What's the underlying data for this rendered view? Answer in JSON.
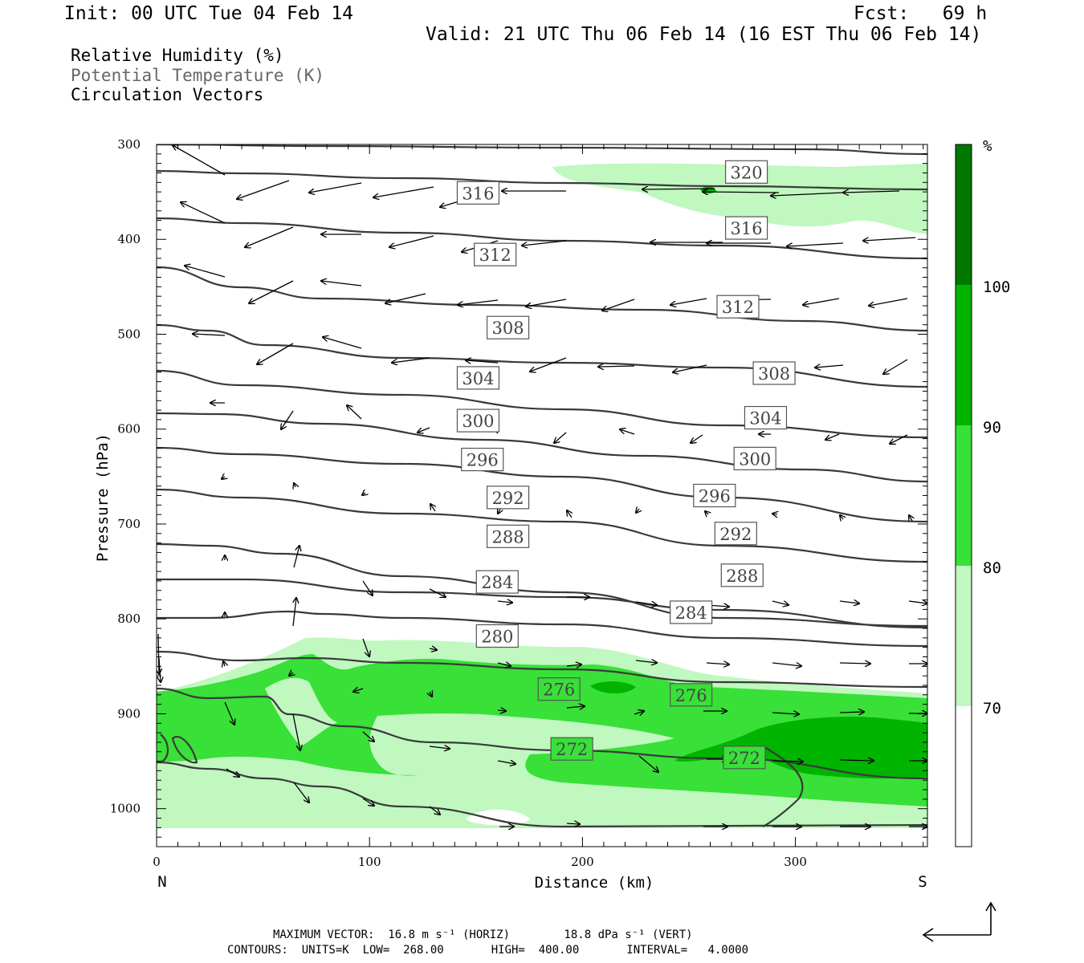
{
  "header": {
    "init": "Init: 00 UTC Tue 04 Feb 14",
    "fcst": "Fcst:   69 h",
    "valid": "Valid: 21 UTC Thu 06 Feb 14 (16 EST Thu 06 Feb 14)"
  },
  "legend": {
    "line1": "Relative Humidity (%)",
    "line2": "Potential Temperature (K)",
    "line3": "Circulation Vectors"
  },
  "footer": {
    "max_vector": "MAXIMUM VECTOR:  16.8 m s⁻¹ (HORIZ)        18.8 dPa s⁻¹ (VERT)",
    "contours": "CONTOURS:  UNITS=K  LOW=  268.00       HIGH=  400.00       INTERVAL=   4.0000"
  },
  "colors": {
    "rh70": "#c0f8c0",
    "rh80": "#38e038",
    "rh90": "#00b400",
    "rh100": "#007800",
    "theta_line": "#3a3a3a"
  },
  "chart_data": {
    "type": "cross-section",
    "xlabel": "Distance (km)",
    "ylabel": "Pressure (hPa)",
    "xlim": [
      0,
      362
    ],
    "ylim": [
      1040,
      300
    ],
    "xticks": [
      "0",
      "100",
      "200",
      "300"
    ],
    "yticks": [
      "300",
      "400",
      "500",
      "600",
      "700",
      "800",
      "900",
      "1000"
    ],
    "x_end_labels": {
      "left": "N",
      "right": "S"
    },
    "colorbar": {
      "unit": "%",
      "levels": [
        "70",
        "80",
        "90",
        "100"
      ]
    },
    "theta_labels": [
      {
        "value": "320",
        "x": 277,
        "p": 329
      },
      {
        "value": "316",
        "x": 151,
        "p": 351
      },
      {
        "value": "316",
        "x": 277,
        "p": 388
      },
      {
        "value": "312",
        "x": 159,
        "p": 416
      },
      {
        "value": "312",
        "x": 273,
        "p": 471
      },
      {
        "value": "308",
        "x": 165,
        "p": 493
      },
      {
        "value": "308",
        "x": 290,
        "p": 541
      },
      {
        "value": "304",
        "x": 151,
        "p": 546
      },
      {
        "value": "304",
        "x": 286,
        "p": 588
      },
      {
        "value": "300",
        "x": 151,
        "p": 591
      },
      {
        "value": "300",
        "x": 281,
        "p": 631
      },
      {
        "value": "296",
        "x": 153,
        "p": 632
      },
      {
        "value": "296",
        "x": 262,
        "p": 670
      },
      {
        "value": "292",
        "x": 165,
        "p": 672
      },
      {
        "value": "292",
        "x": 272,
        "p": 710
      },
      {
        "value": "288",
        "x": 165,
        "p": 713
      },
      {
        "value": "288",
        "x": 275,
        "p": 754
      },
      {
        "value": "284",
        "x": 160,
        "p": 761
      },
      {
        "value": "284",
        "x": 251,
        "p": 793
      },
      {
        "value": "280",
        "x": 160,
        "p": 818
      },
      {
        "value": "276",
        "x": 189,
        "p": 874
      },
      {
        "value": "276",
        "x": 251,
        "p": 880
      },
      {
        "value": "272",
        "x": 195,
        "p": 937
      },
      {
        "value": "272",
        "x": 276,
        "p": 946
      }
    ],
    "theta_levels": [
      268,
      272,
      276,
      280,
      284,
      288,
      292,
      296,
      300,
      304,
      308,
      312,
      316,
      320
    ]
  }
}
